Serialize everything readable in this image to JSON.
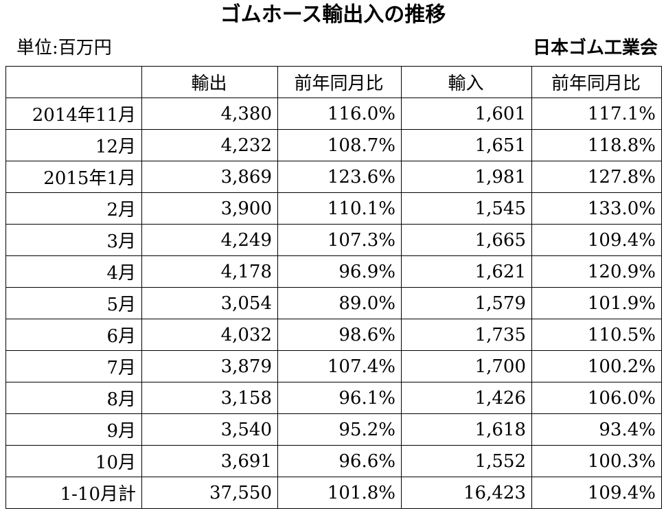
{
  "title": "ゴムホース輸出入の推移",
  "unit": "単位:百万円",
  "source": "日本ゴム工業会",
  "chart_data": {
    "type": "table",
    "columns": [
      "",
      "輸出",
      "前年同月比",
      "輸入",
      "前年同月比"
    ],
    "rows": [
      [
        "2014年11月",
        "4,380",
        "116.0%",
        "1,601",
        "117.1%"
      ],
      [
        "12月",
        "4,232",
        "108.7%",
        "1,651",
        "118.8%"
      ],
      [
        "2015年1月",
        "3,869",
        "123.6%",
        "1,981",
        "127.8%"
      ],
      [
        "2月",
        "3,900",
        "110.1%",
        "1,545",
        "133.0%"
      ],
      [
        "3月",
        "4,249",
        "107.3%",
        "1,665",
        "109.4%"
      ],
      [
        "4月",
        "4,178",
        "96.9%",
        "1,621",
        "120.9%"
      ],
      [
        "5月",
        "3,054",
        "89.0%",
        "1,579",
        "101.9%"
      ],
      [
        "6月",
        "4,032",
        "98.6%",
        "1,735",
        "110.5%"
      ],
      [
        "7月",
        "3,879",
        "107.4%",
        "1,700",
        "100.2%"
      ],
      [
        "8月",
        "3,158",
        "96.1%",
        "1,426",
        "106.0%"
      ],
      [
        "9月",
        "3,540",
        "95.2%",
        "1,618",
        "93.4%"
      ],
      [
        "10月",
        "3,691",
        "96.6%",
        "1,552",
        "100.3%"
      ],
      [
        "1-10月計",
        "37,550",
        "101.8%",
        "16,423",
        "109.4%"
      ]
    ]
  }
}
